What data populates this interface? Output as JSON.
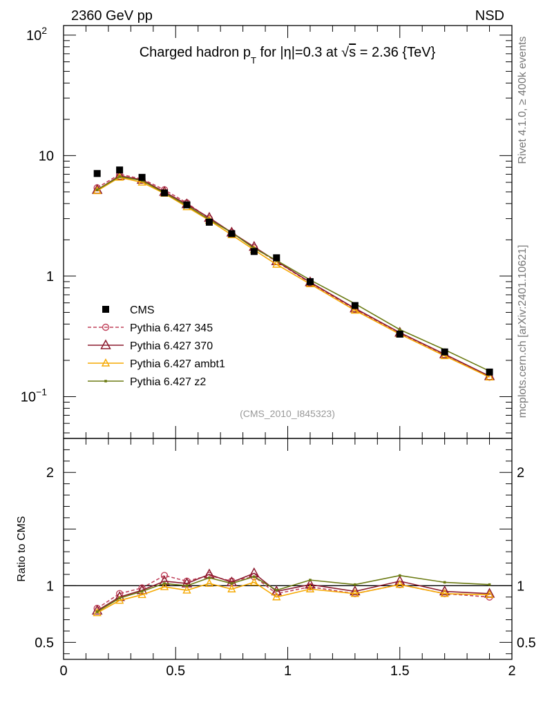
{
  "header": {
    "left": "2360 GeV pp",
    "right": "NSD"
  },
  "side": {
    "rivet": "Rivet 4.1.0, ≥ 400k events",
    "mcplots": "mcplots.cern.ch [arXiv:2401.10621]"
  },
  "title": {
    "pre": "Charged hadron p",
    "sub": "T",
    "post1": " for |η|=0.3 at ",
    "sqrt": "√",
    "s": "s",
    "post2": " = 2.36 {TeV}"
  },
  "analysis_id": "(CMS_2010_I845323)",
  "colors": {
    "data": "#000000",
    "p345": "#c0405a",
    "p370": "#8b1a2e",
    "ambt1": "#f5a800",
    "z2": "#6b7a12"
  },
  "chart_data": [
    {
      "type": "line",
      "panel": "main",
      "title": "Charged hadron pT for |η|=0.3 at √s = 2.36 {TeV}",
      "yscale": "log",
      "xlim": [
        0,
        2
      ],
      "ylim": [
        0.045,
        120
      ],
      "yticks": [
        {
          "v": 0.1,
          "base": "10",
          "exp": "−1"
        },
        {
          "v": 1,
          "base": "1",
          "exp": ""
        },
        {
          "v": 10,
          "base": "10",
          "exp": ""
        },
        {
          "v": 100,
          "base": "10",
          "exp": "2"
        }
      ],
      "x": [
        0.15,
        0.25,
        0.35,
        0.45,
        0.55,
        0.65,
        0.75,
        0.85,
        0.95,
        1.1,
        1.3,
        1.5,
        1.7,
        1.9
      ],
      "series": [
        {
          "name": "CMS",
          "key": "data",
          "marker": "square",
          "values": [
            7.1,
            7.6,
            6.6,
            4.9,
            3.9,
            2.8,
            2.25,
            1.6,
            1.42,
            0.9,
            0.57,
            0.33,
            0.235,
            0.16
          ]
        },
        {
          "name": "Pythia 6.427 345",
          "key": "p345",
          "marker": "circle",
          "dash": true,
          "values": [
            5.4,
            7.0,
            6.4,
            5.2,
            4.05,
            3.0,
            2.3,
            1.72,
            1.32,
            0.88,
            0.53,
            0.335,
            0.22,
            0.145
          ]
        },
        {
          "name": "Pythia 6.427 370",
          "key": "p370",
          "marker": "triangle",
          "values": [
            5.2,
            6.8,
            6.3,
            5.0,
            3.95,
            3.05,
            2.3,
            1.75,
            1.33,
            0.89,
            0.54,
            0.34,
            0.225,
            0.148
          ]
        },
        {
          "name": "Pythia 6.427 ambt1",
          "key": "ambt1",
          "marker": "triangle-small",
          "values": [
            5.1,
            6.6,
            6.0,
            4.85,
            3.75,
            2.9,
            2.2,
            1.65,
            1.25,
            0.86,
            0.52,
            0.33,
            0.218,
            0.145
          ]
        },
        {
          "name": "Pythia 6.427 z2",
          "key": "z2",
          "marker": "dot",
          "values": [
            5.2,
            6.7,
            6.2,
            4.9,
            3.85,
            2.95,
            2.3,
            1.7,
            1.35,
            0.93,
            0.59,
            0.36,
            0.245,
            0.163
          ]
        }
      ],
      "legend": [
        "CMS",
        "Pythia 6.427 345",
        "Pythia 6.427 370",
        "Pythia 6.427 ambt1",
        "Pythia 6.427 z2"
      ]
    },
    {
      "type": "line",
      "panel": "ratio",
      "ylabel": "Ratio to CMS",
      "xlim": [
        0,
        2
      ],
      "ylim": [
        0.35,
        2.3
      ],
      "xticks": [
        {
          "v": 0,
          "label": "0"
        },
        {
          "v": 0.5,
          "label": "0.5"
        },
        {
          "v": 1,
          "label": "1"
        },
        {
          "v": 1.5,
          "label": "1.5"
        },
        {
          "v": 2,
          "label": "2"
        }
      ],
      "yticks": [
        {
          "v": 0.5,
          "label": "0.5"
        },
        {
          "v": 1,
          "label": "1"
        },
        {
          "v": 2,
          "label": "2"
        }
      ],
      "reference": 1,
      "x": [
        0.15,
        0.25,
        0.35,
        0.45,
        0.55,
        0.65,
        0.75,
        0.85,
        0.95,
        1.1,
        1.3,
        1.5,
        1.7,
        1.9
      ],
      "series": [
        {
          "name": "Pythia 6.427 345",
          "key": "p345",
          "marker": "circle",
          "dash": true,
          "values": [
            0.8,
            0.93,
            0.98,
            1.09,
            1.04,
            1.09,
            1.04,
            1.08,
            0.93,
            0.99,
            0.93,
            1.01,
            0.93,
            0.9
          ]
        },
        {
          "name": "Pythia 6.427 370",
          "key": "p370",
          "marker": "triangle",
          "values": [
            0.78,
            0.9,
            0.96,
            1.04,
            1.02,
            1.1,
            1.03,
            1.11,
            0.95,
            1.01,
            0.95,
            1.04,
            0.95,
            0.93
          ]
        },
        {
          "name": "Pythia 6.427 ambt1",
          "key": "ambt1",
          "marker": "triangle-small",
          "values": [
            0.76,
            0.87,
            0.92,
            0.99,
            0.96,
            1.02,
            0.97,
            1.03,
            0.9,
            0.97,
            0.93,
            1.01,
            0.93,
            0.92
          ]
        },
        {
          "name": "Pythia 6.427 z2",
          "key": "z2",
          "marker": "dot",
          "values": [
            0.77,
            0.89,
            0.95,
            1.02,
            1.0,
            1.07,
            1.02,
            1.08,
            0.96,
            1.05,
            1.01,
            1.09,
            1.03,
            1.01
          ]
        }
      ]
    }
  ]
}
